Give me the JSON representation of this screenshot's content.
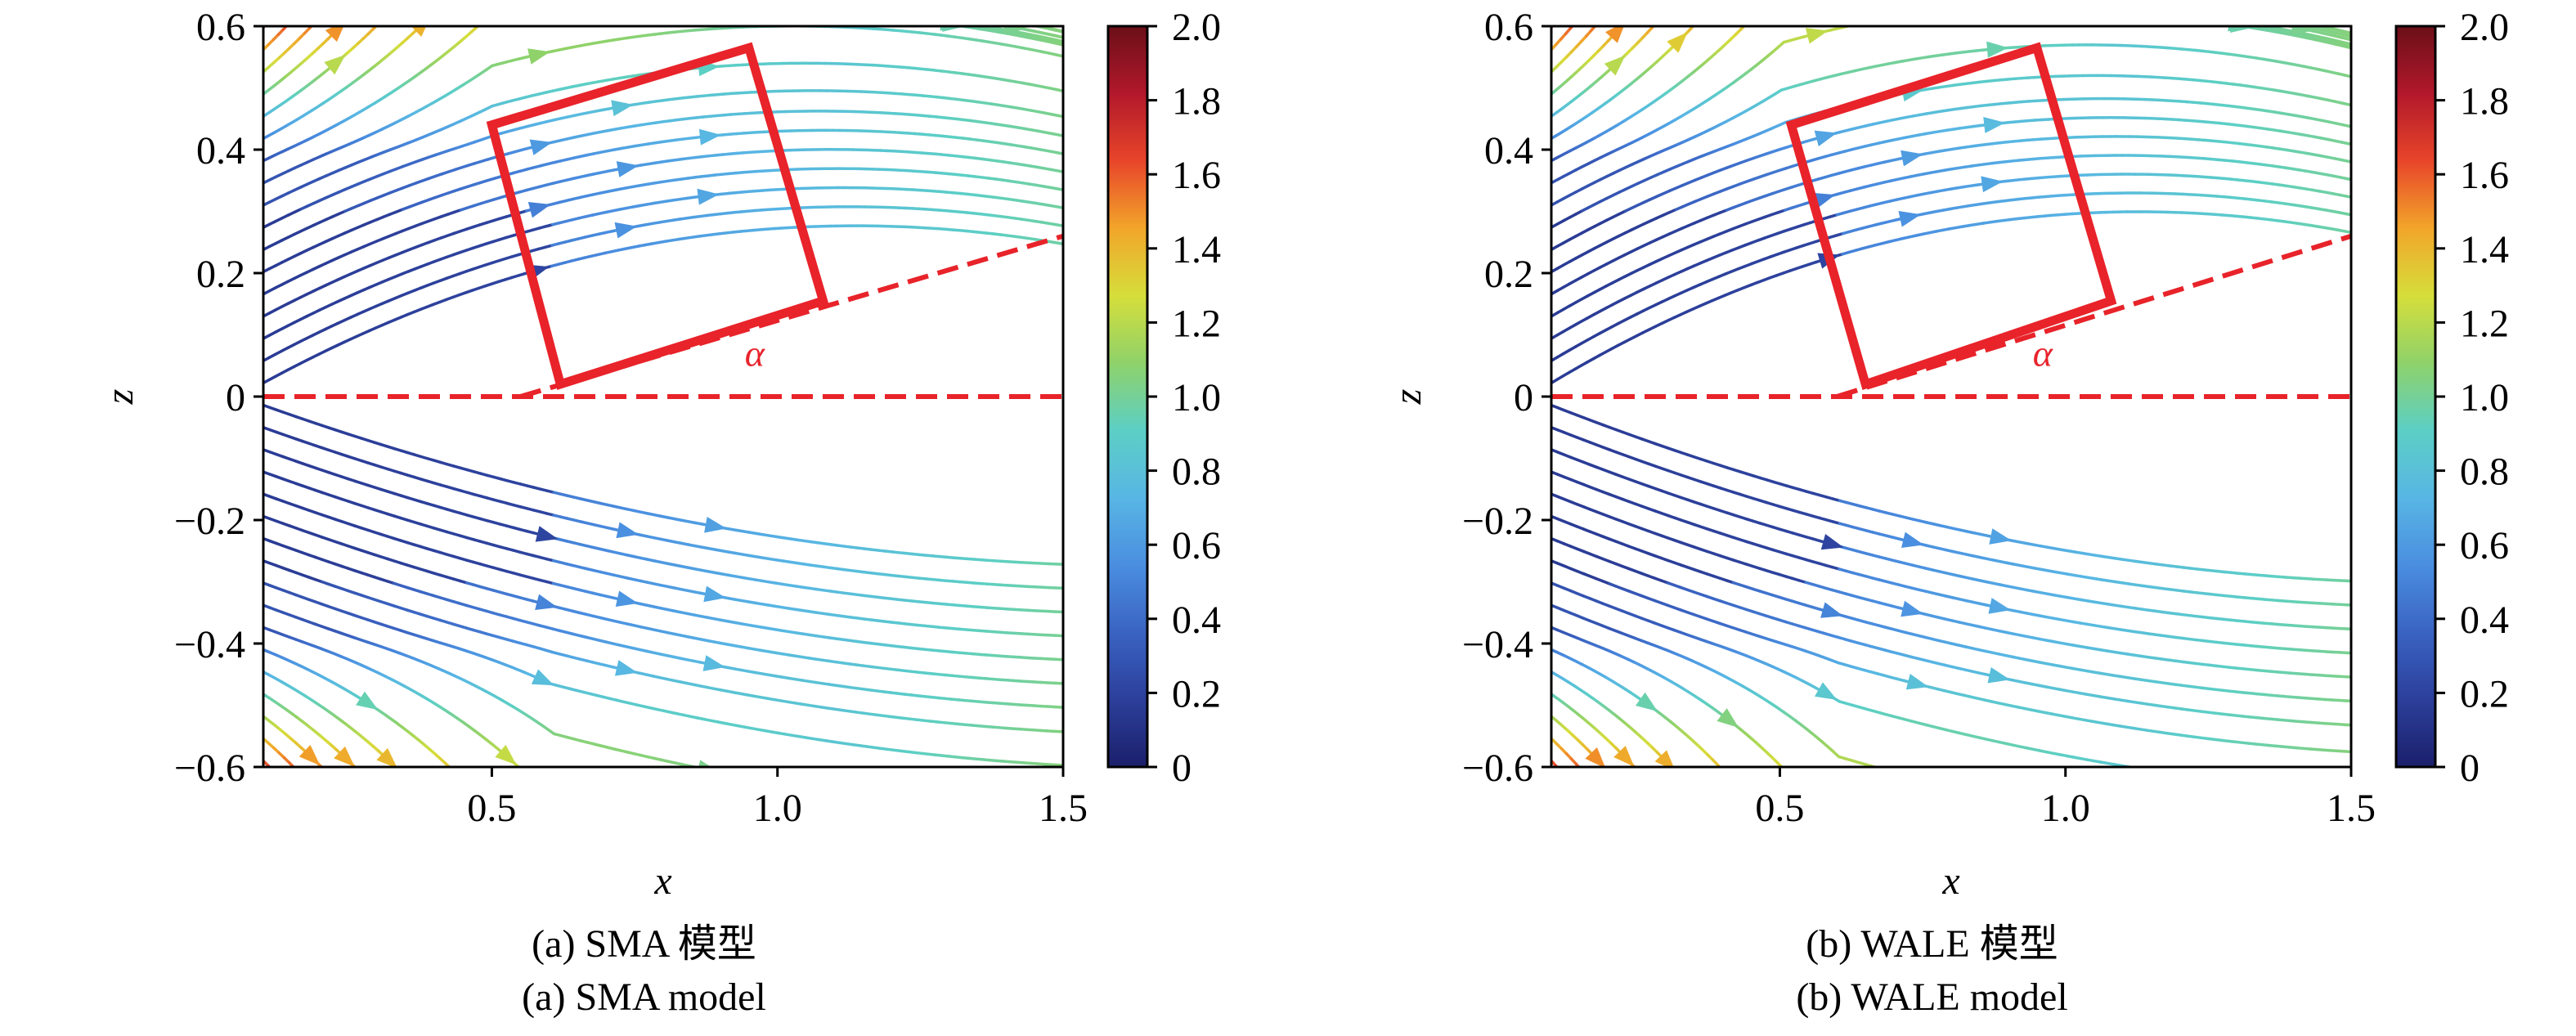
{
  "colorbar": {
    "ticks": [
      "2.0",
      "1.8",
      "1.6",
      "1.4",
      "1.2",
      "1.0",
      "0.8",
      "0.6",
      "0.4",
      "0.2",
      "0"
    ],
    "min": 0,
    "max": 2.0,
    "colors": [
      "#1b1f6b",
      "#2c3f9a",
      "#3a63c2",
      "#4a8ee0",
      "#58b6e4",
      "#5ccfc5",
      "#8fd26a",
      "#d6de3a",
      "#f2a52a",
      "#e8452a",
      "#b2182b",
      "#6b0f18"
    ]
  },
  "chart_data": [
    {
      "type": "streamplot",
      "xlabel": "x",
      "ylabel": "z",
      "xlim": [
        0.1,
        1.5
      ],
      "ylim": [
        -0.6,
        0.6
      ],
      "xticks": [
        "0.5",
        "1.0",
        "1.5"
      ],
      "yticks": [
        "0.6",
        "0.4",
        "0.2",
        "0",
        "−0.2",
        "−0.4",
        "−0.6"
      ],
      "annotation": "α",
      "colorbar_range": [
        0,
        2.0
      ],
      "plate": {
        "corners": [
          [
            0.62,
            0.02
          ],
          [
            1.08,
            0.155
          ],
          [
            0.95,
            0.565
          ],
          [
            0.5,
            0.44
          ]
        ],
        "color": "#e8232a"
      },
      "dashed_lines": [
        {
          "from": [
            0.1,
            0.0
          ],
          "to": [
            1.5,
            0.0
          ]
        },
        {
          "from": [
            0.55,
            0.0
          ],
          "to": [
            1.5,
            0.26
          ]
        }
      ],
      "caption_zh": "(a) SMA 模型",
      "caption_en": "(a) SMA model"
    },
    {
      "type": "streamplot",
      "xlabel": "x",
      "ylabel": "z",
      "xlim": [
        0.1,
        1.5
      ],
      "ylim": [
        -0.6,
        0.6
      ],
      "xticks": [
        "0.5",
        "1.0",
        "1.5"
      ],
      "yticks": [
        "0.6",
        "0.4",
        "0.2",
        "0",
        "−0.2",
        "−0.4",
        "−0.6"
      ],
      "annotation": "α",
      "colorbar_range": [
        0,
        2.0
      ],
      "plate": {
        "corners": [
          [
            0.65,
            0.02
          ],
          [
            1.08,
            0.155
          ],
          [
            0.95,
            0.565
          ],
          [
            0.52,
            0.44
          ]
        ],
        "color": "#e8232a"
      },
      "dashed_lines": [
        {
          "from": [
            0.1,
            0.0
          ],
          "to": [
            1.5,
            0.0
          ]
        },
        {
          "from": [
            0.6,
            0.0
          ],
          "to": [
            1.5,
            0.26
          ]
        }
      ],
      "caption_zh": "(b) WALE 模型",
      "caption_en": "(b) WALE model"
    }
  ]
}
